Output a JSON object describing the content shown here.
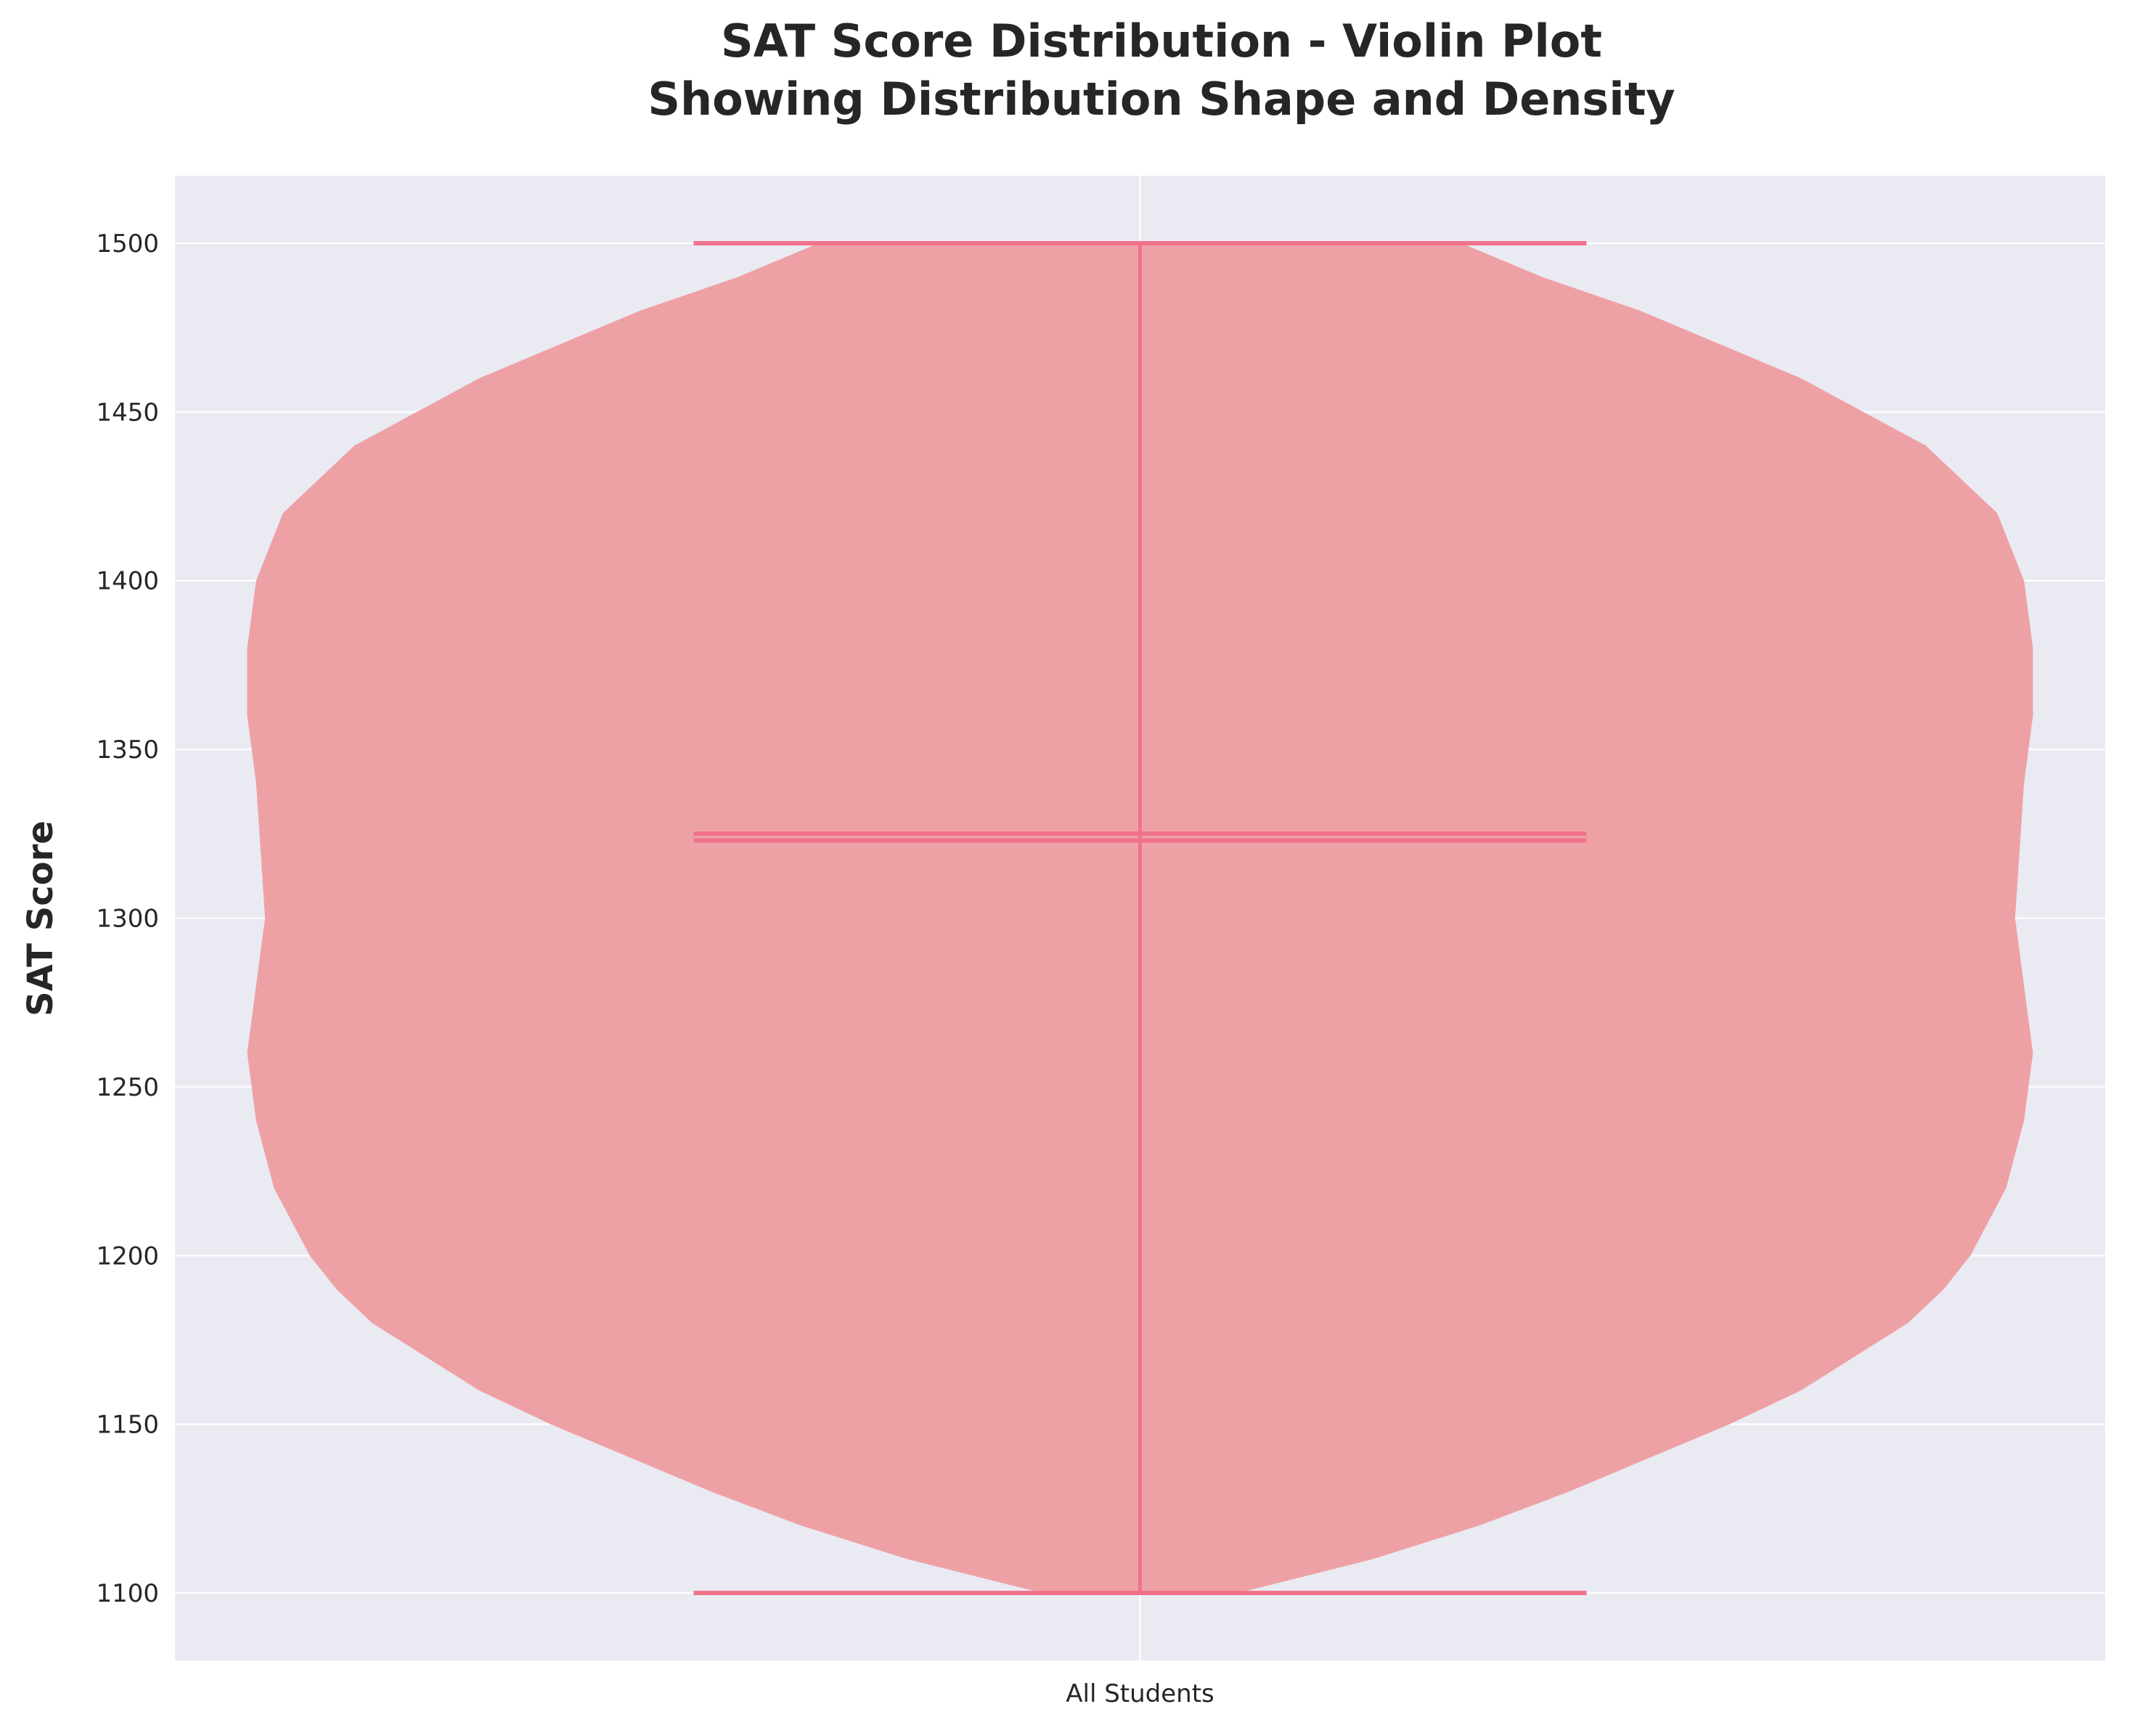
{
  "chart_data": {
    "type": "violin",
    "title": "SAT Score Distribution - Violin Plot",
    "subtitle": "Showing Distribution Shape and Density",
    "xlabel": "",
    "ylabel": "SAT Score",
    "categories": [
      "All Students"
    ],
    "ylim": [
      1080,
      1520
    ],
    "yticks": [
      1100,
      1150,
      1200,
      1250,
      1300,
      1350,
      1400,
      1450,
      1500
    ],
    "grid": true,
    "violin": {
      "min": 1100,
      "max": 1500,
      "mean": 1325,
      "median": 1323,
      "density_profile": [
        [
          1100,
          0.11
        ],
        [
          1110,
          0.26
        ],
        [
          1120,
          0.38
        ],
        [
          1130,
          0.48
        ],
        [
          1140,
          0.57
        ],
        [
          1150,
          0.66
        ],
        [
          1160,
          0.74
        ],
        [
          1170,
          0.8
        ],
        [
          1180,
          0.86
        ],
        [
          1190,
          0.9
        ],
        [
          1200,
          0.93
        ],
        [
          1210,
          0.95
        ],
        [
          1220,
          0.97
        ],
        [
          1230,
          0.98
        ],
        [
          1240,
          0.99
        ],
        [
          1250,
          0.995
        ],
        [
          1260,
          1.0
        ],
        [
          1280,
          0.99
        ],
        [
          1300,
          0.98
        ],
        [
          1320,
          0.985
        ],
        [
          1340,
          0.99
        ],
        [
          1360,
          1.0
        ],
        [
          1380,
          1.0
        ],
        [
          1400,
          0.99
        ],
        [
          1420,
          0.96
        ],
        [
          1440,
          0.88
        ],
        [
          1460,
          0.74
        ],
        [
          1480,
          0.56
        ],
        [
          1490,
          0.45
        ],
        [
          1500,
          0.36
        ]
      ]
    },
    "colors": {
      "fill": "#ee9da0",
      "lines": "#f0728a",
      "background": "#eaeaf2",
      "grid": "#ffffff"
    }
  }
}
